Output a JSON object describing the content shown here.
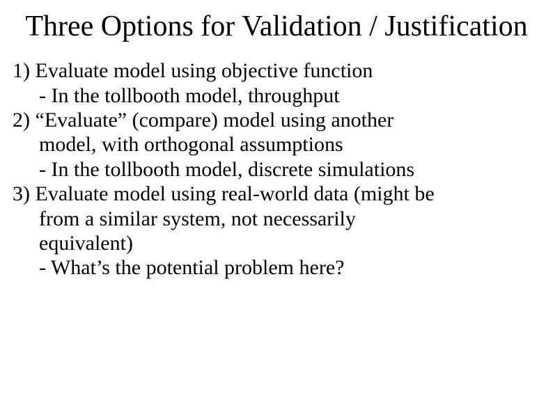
{
  "title_fontsize": 42,
  "body_fontsize": 30,
  "background_color": "#ffffff",
  "text_color": "#000000",
  "font_family": "Times New Roman",
  "title": "Three Options for Validation / Justification",
  "items": [
    {
      "num": "1)",
      "main": "Evaluate model using objective function",
      "sub": "- In the tollbooth model, throughput"
    },
    {
      "num": "2)",
      "main": "“Evaluate” (compare) model using another",
      "cont": "model, with orthogonal assumptions",
      "sub": "- In the tollbooth model, discrete simulations"
    },
    {
      "num": "3)",
      "main": "Evaluate model using real-world data (might be",
      "cont": "from a similar system, not necessarily",
      "cont2": "equivalent)",
      "sub": "- What’s the potential problem here?"
    }
  ]
}
